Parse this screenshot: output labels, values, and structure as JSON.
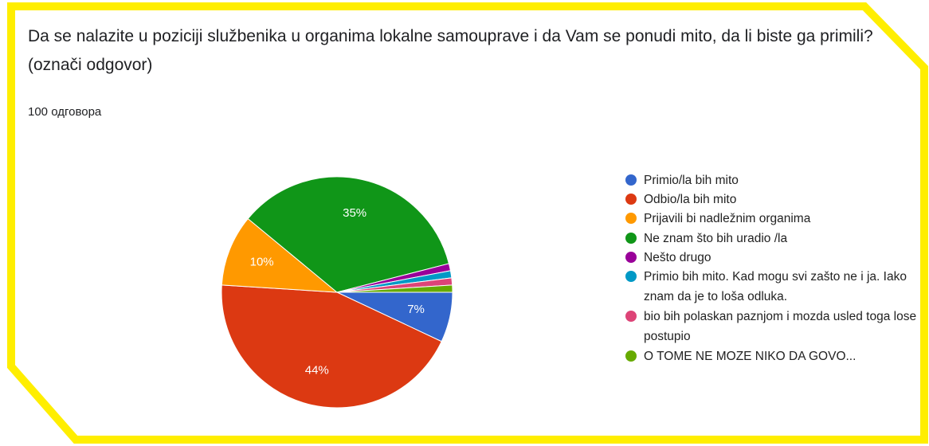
{
  "chart_data": {
    "type": "pie",
    "title": "Da se nalazite u poziciji službenika u organima lokalne samouprave i da Vam se ponudi mito, da li biste ga primili? (označi odgovor)",
    "subtitle": "100 одговора",
    "categories": [
      "Primio/la bih mito",
      "Odbio/la bih mito",
      "Prijavili bi nadležnim organima",
      "Ne znam što bih uradio /la",
      "Nešto drugo",
      "Primio bih mito. Kad mogu svi zašto ne i ja. Iako znam da je to loša odluka.",
      "bio bih polaskan paznjom i mozda usled toga lose postupio",
      "O TOME NE MOZE NIKO DA GOVO..."
    ],
    "values": [
      7,
      44,
      10,
      35,
      1,
      1,
      1,
      1
    ],
    "value_labels": [
      "7%",
      "44%",
      "10%",
      "35%",
      null,
      null,
      null,
      null
    ],
    "colors": [
      "#3366cc",
      "#dc3912",
      "#ff9900",
      "#109618",
      "#990099",
      "#0099c6",
      "#dd4477",
      "#66aa00"
    ]
  }
}
